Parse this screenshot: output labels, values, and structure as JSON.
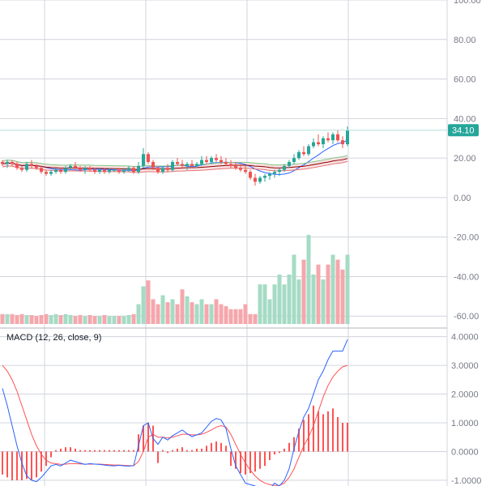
{
  "colors": {
    "up": "#26a69a",
    "down": "#ef5350",
    "vol_up": "#a5dbc4",
    "vol_down": "#f5a7ac",
    "grid": "#d1d4dc",
    "hline": "#b2dfdb",
    "badge": "#26a69a",
    "macd_line": "#2962ff",
    "signal_line": "#ff5252",
    "cloud_red": "#f8d3d6",
    "cloud_green": "#d6ecd9",
    "span_a": "#81c784",
    "span_b": "#e57373",
    "lagging": "#b39d5c",
    "conv": "#2962ff",
    "base": "#8b0000",
    "bb": "#4caf50"
  },
  "price_badge": "34.10",
  "price_ticks": [
    "100.00",
    "80.00",
    "60.00",
    "40.00",
    "20.00",
    "0.00",
    "-20.00",
    "-40.00",
    "-60.00"
  ],
  "macd_title": "MACD (12, 26, close, 9)",
  "macd_ticks": [
    "4.0000",
    "3.0000",
    "2.0000",
    "1.0000",
    "0.0000",
    "-1.0000"
  ],
  "chart_data": [
    {
      "type": "candlestick",
      "ylim": [
        -64,
        100
      ],
      "last_price": 34.1,
      "candles": [
        [
          18,
          19,
          16,
          17
        ],
        [
          17,
          19,
          15,
          18
        ],
        [
          18,
          19,
          16,
          17
        ],
        [
          17,
          18,
          14,
          15
        ],
        [
          15,
          16,
          13,
          14
        ],
        [
          14,
          18,
          13,
          17
        ],
        [
          17,
          19,
          15,
          16
        ],
        [
          16,
          17,
          14,
          15
        ],
        [
          15,
          16,
          12,
          13
        ],
        [
          13,
          14,
          11,
          12
        ],
        [
          12,
          14,
          11,
          13
        ],
        [
          13,
          15,
          12,
          14
        ],
        [
          14,
          15,
          12,
          13
        ],
        [
          13,
          16,
          12,
          15
        ],
        [
          15,
          17,
          14,
          16
        ],
        [
          16,
          18,
          14,
          15
        ],
        [
          15,
          16,
          13,
          14
        ],
        [
          14,
          16,
          12,
          15
        ],
        [
          15,
          16,
          13,
          14
        ],
        [
          14,
          15,
          12,
          13
        ],
        [
          13,
          15,
          12,
          14
        ],
        [
          14,
          15,
          12,
          13
        ],
        [
          13,
          15,
          12,
          14
        ],
        [
          14,
          15,
          13,
          14
        ],
        [
          14,
          15,
          12,
          13
        ],
        [
          13,
          15,
          12,
          14
        ],
        [
          14,
          16,
          13,
          15
        ],
        [
          15,
          16,
          12,
          13
        ],
        [
          13,
          18,
          12,
          16
        ],
        [
          16,
          25,
          15,
          22
        ],
        [
          22,
          23,
          17,
          18
        ],
        [
          18,
          19,
          14,
          15
        ],
        [
          15,
          16,
          12,
          13
        ],
        [
          13,
          16,
          12,
          15
        ],
        [
          15,
          17,
          13,
          14
        ],
        [
          14,
          19,
          13,
          18
        ],
        [
          18,
          20,
          16,
          17
        ],
        [
          17,
          19,
          15,
          16
        ],
        [
          16,
          18,
          14,
          17
        ],
        [
          17,
          19,
          15,
          16
        ],
        [
          16,
          18,
          15,
          17
        ],
        [
          17,
          21,
          16,
          19
        ],
        [
          19,
          21,
          17,
          18
        ],
        [
          18,
          21,
          17,
          20
        ],
        [
          20,
          22,
          18,
          19
        ],
        [
          19,
          21,
          17,
          18
        ],
        [
          18,
          20,
          16,
          17
        ],
        [
          17,
          19,
          15,
          16
        ],
        [
          16,
          18,
          14,
          15
        ],
        [
          15,
          17,
          13,
          14
        ],
        [
          14,
          16,
          12,
          13
        ],
        [
          13,
          14,
          9,
          10
        ],
        [
          10,
          12,
          6,
          8
        ],
        [
          8,
          11,
          7,
          10
        ],
        [
          10,
          12,
          8,
          11
        ],
        [
          11,
          13,
          9,
          12
        ],
        [
          12,
          14,
          10,
          13
        ],
        [
          13,
          15,
          11,
          14
        ],
        [
          14,
          17,
          13,
          16
        ],
        [
          16,
          19,
          15,
          18
        ],
        [
          18,
          22,
          17,
          20
        ],
        [
          20,
          24,
          19,
          23
        ],
        [
          23,
          26,
          21,
          22
        ],
        [
          22,
          27,
          21,
          26
        ],
        [
          26,
          30,
          25,
          28
        ],
        [
          28,
          32,
          26,
          27
        ],
        [
          27,
          31,
          25,
          30
        ],
        [
          30,
          33,
          28,
          29
        ],
        [
          29,
          33,
          27,
          32
        ],
        [
          32,
          34,
          28,
          29
        ],
        [
          29,
          31,
          25,
          27
        ],
        [
          27,
          36,
          26,
          34
        ]
      ]
    },
    {
      "type": "bar",
      "name": "Volume",
      "values": [
        10,
        10,
        10,
        9,
        10,
        9,
        9,
        8,
        9,
        10,
        9,
        10,
        9,
        10,
        9,
        8,
        9,
        8,
        9,
        8,
        8,
        9,
        8,
        8,
        8,
        8,
        9,
        10,
        20,
        38,
        44,
        25,
        20,
        29,
        22,
        25,
        20,
        35,
        28,
        22,
        20,
        25,
        20,
        20,
        25,
        20,
        18,
        15,
        15,
        15,
        20,
        10,
        10,
        40,
        40,
        25,
        40,
        50,
        40,
        50,
        70,
        45,
        65,
        90,
        50,
        60,
        45,
        60,
        70,
        65,
        55,
        70
      ]
    },
    {
      "type": "line",
      "name": "MACD",
      "ylim": [
        -1.2,
        4.3
      ],
      "series": [
        {
          "values": [
            2.2,
            1.6,
            0.9,
            0.2,
            -0.4,
            -0.85,
            -1.0,
            -1.05,
            -0.9,
            -0.7,
            -0.5,
            -0.45,
            -0.5,
            -0.4,
            -0.3,
            -0.35,
            -0.4,
            -0.45,
            -0.42,
            -0.44,
            -0.45,
            -0.47,
            -0.49,
            -0.5,
            -0.48,
            -0.5,
            -0.51,
            -0.49,
            0.2,
            0.9,
            1.0,
            0.45,
            0.25,
            0.5,
            0.4,
            0.55,
            0.65,
            0.75,
            0.62,
            0.52,
            0.58,
            0.65,
            0.85,
            1.05,
            1.15,
            1.1,
            0.8,
            0.1,
            -0.5,
            -0.8,
            -1.1,
            -1.15,
            -1.2,
            -1.3,
            -1.4,
            -1.3,
            -1.1,
            -1.2,
            -1.0,
            -0.6,
            0.1,
            0.7,
            1.2,
            1.5,
            2.0,
            2.5,
            2.8,
            3.2,
            3.5,
            3.5,
            3.5,
            3.9
          ]
        },
        {
          "values": [
            3.0,
            2.8,
            2.5,
            2.1,
            1.6,
            1.1,
            0.6,
            0.2,
            -0.1,
            -0.3,
            -0.4,
            -0.42,
            -0.45,
            -0.44,
            -0.42,
            -0.42,
            -0.43,
            -0.44,
            -0.44,
            -0.44,
            -0.44,
            -0.45,
            -0.46,
            -0.47,
            -0.47,
            -0.48,
            -0.49,
            -0.49,
            -0.35,
            0.0,
            0.5,
            0.6,
            0.5,
            0.5,
            0.47,
            0.5,
            0.55,
            0.6,
            0.6,
            0.58,
            0.58,
            0.6,
            0.67,
            0.75,
            0.85,
            0.9,
            0.85,
            0.6,
            0.25,
            -0.1,
            -0.4,
            -0.65,
            -0.85,
            -1.0,
            -1.1,
            -1.15,
            -1.18,
            -1.18,
            -1.1,
            -0.9,
            -0.6,
            -0.2,
            0.2,
            0.5,
            0.9,
            1.4,
            1.9,
            2.3,
            2.6,
            2.8,
            2.95,
            3.0
          ]
        }
      ],
      "histogram": [
        -0.8,
        -0.9,
        -1.0,
        -1.0,
        -1.0,
        -0.95,
        -1.0,
        -0.9,
        -0.7,
        -0.5,
        -0.2,
        0.05,
        0.1,
        0.15,
        0.15,
        0.1,
        0.05,
        0.05,
        0.05,
        0.05,
        0.05,
        0.05,
        0.05,
        0.05,
        0.05,
        0.05,
        0.05,
        0.05,
        0.6,
        0.9,
        1.0,
        0.9,
        -0.4,
        0.05,
        -0.05,
        0.05,
        0.1,
        0.15,
        0.05,
        0.05,
        0.1,
        0.1,
        0.2,
        0.3,
        0.35,
        0.3,
        0.2,
        -0.5,
        -0.6,
        -0.75,
        -0.8,
        -0.75,
        -0.7,
        -0.6,
        -0.5,
        -0.3,
        -0.1,
        -0.05,
        0.1,
        0.3,
        0.5,
        0.8,
        1.1,
        1.3,
        1.6,
        1.4,
        1.3,
        1.4,
        1.5,
        1.2,
        1.0,
        1.0
      ]
    }
  ]
}
